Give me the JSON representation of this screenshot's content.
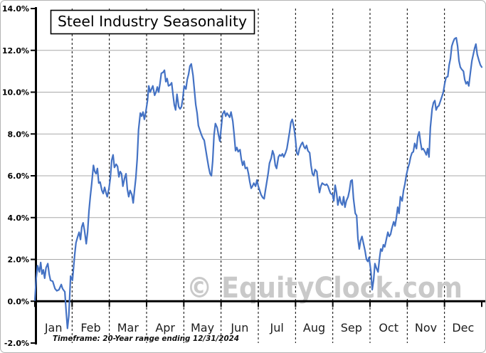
{
  "colors": {
    "line": "#4472c4",
    "grid": "#a9a9a9",
    "axis": "#000000",
    "month_divider": "#000000",
    "watermark": "#c9c9c9",
    "title_text": "#000000",
    "frame_border": "#b4b4b4"
  },
  "chart_data": {
    "type": "line",
    "title": "Steel Industry Seasonality",
    "footnote": "Timeframe: 20-Year range ending 12/31/2024",
    "watermark": "© EquityClock.com",
    "y_unit": "percent",
    "x_unit": "fraction of year (Jan 1 = 0, Dec 31 = 1)",
    "ylim": [
      -2,
      14
    ],
    "y_tick_step": 2,
    "y_ticks": [
      "14.0%",
      "12.0%",
      "10.0%",
      "8.0%",
      "6.0%",
      "4.0%",
      "2.0%",
      "0.0%",
      "-2.0%"
    ],
    "months": [
      "Jan",
      "Feb",
      "Mar",
      "Apr",
      "May",
      "Jun",
      "Jul",
      "Aug",
      "Sep",
      "Oct",
      "Nov",
      "Dec"
    ],
    "grid": "horizontal solid gray at 2% steps; vertical black dashed at month boundaries",
    "legend": "none",
    "points": [
      [
        0.0,
        0.05
      ],
      [
        0.003,
        1.1
      ],
      [
        0.006,
        1.7
      ],
      [
        0.01,
        1.4
      ],
      [
        0.013,
        1.85
      ],
      [
        0.016,
        1.3
      ],
      [
        0.019,
        1.5
      ],
      [
        0.022,
        1.1
      ],
      [
        0.025,
        1.6
      ],
      [
        0.029,
        1.8
      ],
      [
        0.032,
        1.3
      ],
      [
        0.035,
        1.0
      ],
      [
        0.04,
        0.95
      ],
      [
        0.045,
        0.6
      ],
      [
        0.049,
        0.5
      ],
      [
        0.054,
        0.55
      ],
      [
        0.059,
        0.8
      ],
      [
        0.062,
        0.6
      ],
      [
        0.067,
        0.45
      ],
      [
        0.07,
        -0.5
      ],
      [
        0.073,
        -1.3
      ],
      [
        0.076,
        -0.7
      ],
      [
        0.08,
        1.2
      ],
      [
        0.084,
        1.0
      ],
      [
        0.089,
        2.2
      ],
      [
        0.092,
        2.8
      ],
      [
        0.096,
        3.1
      ],
      [
        0.099,
        3.3
      ],
      [
        0.102,
        2.95
      ],
      [
        0.105,
        3.55
      ],
      [
        0.108,
        3.75
      ],
      [
        0.111,
        3.4
      ],
      [
        0.115,
        2.75
      ],
      [
        0.118,
        3.3
      ],
      [
        0.121,
        4.3
      ],
      [
        0.124,
        5.0
      ],
      [
        0.127,
        5.6
      ],
      [
        0.131,
        6.5
      ],
      [
        0.134,
        6.2
      ],
      [
        0.137,
        6.1
      ],
      [
        0.14,
        6.35
      ],
      [
        0.143,
        5.65
      ],
      [
        0.146,
        5.7
      ],
      [
        0.15,
        5.3
      ],
      [
        0.153,
        5.15
      ],
      [
        0.156,
        5.45
      ],
      [
        0.159,
        5.2
      ],
      [
        0.162,
        5.0
      ],
      [
        0.166,
        5.4
      ],
      [
        0.169,
        5.9
      ],
      [
        0.172,
        6.75
      ],
      [
        0.175,
        7.0
      ],
      [
        0.178,
        6.4
      ],
      [
        0.182,
        6.55
      ],
      [
        0.185,
        6.45
      ],
      [
        0.188,
        5.95
      ],
      [
        0.191,
        6.2
      ],
      [
        0.194,
        6.1
      ],
      [
        0.197,
        5.5
      ],
      [
        0.201,
        5.9
      ],
      [
        0.204,
        6.1
      ],
      [
        0.207,
        5.35
      ],
      [
        0.21,
        5.0
      ],
      [
        0.213,
        5.3
      ],
      [
        0.217,
        5.1
      ],
      [
        0.22,
        4.7
      ],
      [
        0.223,
        5.3
      ],
      [
        0.226,
        5.9
      ],
      [
        0.229,
        6.8
      ],
      [
        0.232,
        8.2
      ],
      [
        0.236,
        9.0
      ],
      [
        0.239,
        8.85
      ],
      [
        0.242,
        9.05
      ],
      [
        0.245,
        8.7
      ],
      [
        0.248,
        9.0
      ],
      [
        0.252,
        9.6
      ],
      [
        0.255,
        10.3
      ],
      [
        0.258,
        10.0
      ],
      [
        0.261,
        10.15
      ],
      [
        0.264,
        10.3
      ],
      [
        0.268,
        9.85
      ],
      [
        0.271,
        10.0
      ],
      [
        0.274,
        10.25
      ],
      [
        0.277,
        10.0
      ],
      [
        0.28,
        10.4
      ],
      [
        0.283,
        10.9
      ],
      [
        0.287,
        10.95
      ],
      [
        0.29,
        11.05
      ],
      [
        0.293,
        10.5
      ],
      [
        0.296,
        10.65
      ],
      [
        0.299,
        10.3
      ],
      [
        0.303,
        10.35
      ],
      [
        0.306,
        10.45
      ],
      [
        0.309,
        9.9
      ],
      [
        0.312,
        9.4
      ],
      [
        0.315,
        9.15
      ],
      [
        0.318,
        9.9
      ],
      [
        0.322,
        9.3
      ],
      [
        0.325,
        9.2
      ],
      [
        0.328,
        9.3
      ],
      [
        0.331,
        9.7
      ],
      [
        0.334,
        10.3
      ],
      [
        0.338,
        10.15
      ],
      [
        0.341,
        10.6
      ],
      [
        0.344,
        10.85
      ],
      [
        0.347,
        11.25
      ],
      [
        0.35,
        11.35
      ],
      [
        0.354,
        10.8
      ],
      [
        0.357,
        10.1
      ],
      [
        0.36,
        9.4
      ],
      [
        0.363,
        9.0
      ],
      [
        0.366,
        8.4
      ],
      [
        0.369,
        8.2
      ],
      [
        0.373,
        7.95
      ],
      [
        0.376,
        7.8
      ],
      [
        0.379,
        7.7
      ],
      [
        0.382,
        7.3
      ],
      [
        0.385,
        6.9
      ],
      [
        0.389,
        6.4
      ],
      [
        0.392,
        6.1
      ],
      [
        0.395,
        6.0
      ],
      [
        0.398,
        6.7
      ],
      [
        0.401,
        7.95
      ],
      [
        0.404,
        8.5
      ],
      [
        0.408,
        8.3
      ],
      [
        0.411,
        7.95
      ],
      [
        0.414,
        7.65
      ],
      [
        0.417,
        8.3
      ],
      [
        0.42,
        8.95
      ],
      [
        0.424,
        9.1
      ],
      [
        0.427,
        8.85
      ],
      [
        0.43,
        9.0
      ],
      [
        0.433,
        8.9
      ],
      [
        0.436,
        8.8
      ],
      [
        0.439,
        9.05
      ],
      [
        0.443,
        8.6
      ],
      [
        0.446,
        7.95
      ],
      [
        0.449,
        7.2
      ],
      [
        0.452,
        7.35
      ],
      [
        0.455,
        7.15
      ],
      [
        0.459,
        7.25
      ],
      [
        0.462,
        6.8
      ],
      [
        0.465,
        6.5
      ],
      [
        0.468,
        6.7
      ],
      [
        0.471,
        6.35
      ],
      [
        0.475,
        6.4
      ],
      [
        0.478,
        6.1
      ],
      [
        0.481,
        5.7
      ],
      [
        0.484,
        5.4
      ],
      [
        0.487,
        5.5
      ],
      [
        0.49,
        5.65
      ],
      [
        0.494,
        5.5
      ],
      [
        0.497,
        5.8
      ],
      [
        0.5,
        5.5
      ],
      [
        0.503,
        5.3
      ],
      [
        0.506,
        5.1
      ],
      [
        0.51,
        4.95
      ],
      [
        0.513,
        4.9
      ],
      [
        0.516,
        5.3
      ],
      [
        0.519,
        5.7
      ],
      [
        0.522,
        6.1
      ],
      [
        0.525,
        6.6
      ],
      [
        0.529,
        6.85
      ],
      [
        0.532,
        7.2
      ],
      [
        0.535,
        7.0
      ],
      [
        0.538,
        6.5
      ],
      [
        0.541,
        6.35
      ],
      [
        0.545,
        6.9
      ],
      [
        0.548,
        7.0
      ],
      [
        0.551,
        6.95
      ],
      [
        0.554,
        7.05
      ],
      [
        0.557,
        6.9
      ],
      [
        0.561,
        7.1
      ],
      [
        0.564,
        7.3
      ],
      [
        0.567,
        7.7
      ],
      [
        0.57,
        8.1
      ],
      [
        0.573,
        8.55
      ],
      [
        0.576,
        8.7
      ],
      [
        0.58,
        8.3
      ],
      [
        0.583,
        7.8
      ],
      [
        0.586,
        7.1
      ],
      [
        0.589,
        7.0
      ],
      [
        0.592,
        7.3
      ],
      [
        0.596,
        7.5
      ],
      [
        0.599,
        7.6
      ],
      [
        0.602,
        7.4
      ],
      [
        0.605,
        7.3
      ],
      [
        0.608,
        7.45
      ],
      [
        0.611,
        7.2
      ],
      [
        0.615,
        7.1
      ],
      [
        0.618,
        6.5
      ],
      [
        0.621,
        6.1
      ],
      [
        0.624,
        6.0
      ],
      [
        0.627,
        6.3
      ],
      [
        0.631,
        6.2
      ],
      [
        0.634,
        5.6
      ],
      [
        0.637,
        5.2
      ],
      [
        0.64,
        5.5
      ],
      [
        0.643,
        5.65
      ],
      [
        0.646,
        5.6
      ],
      [
        0.65,
        5.55
      ],
      [
        0.653,
        5.6
      ],
      [
        0.656,
        5.5
      ],
      [
        0.659,
        5.3
      ],
      [
        0.662,
        5.15
      ],
      [
        0.666,
        5.1
      ],
      [
        0.669,
        4.8
      ],
      [
        0.672,
        5.55
      ],
      [
        0.675,
        5.2
      ],
      [
        0.678,
        4.6
      ],
      [
        0.682,
        5.0
      ],
      [
        0.685,
        4.7
      ],
      [
        0.688,
        4.6
      ],
      [
        0.691,
        5.0
      ],
      [
        0.694,
        4.5
      ],
      [
        0.697,
        4.8
      ],
      [
        0.701,
        5.0
      ],
      [
        0.704,
        5.3
      ],
      [
        0.707,
        5.75
      ],
      [
        0.71,
        5.8
      ],
      [
        0.713,
        4.9
      ],
      [
        0.717,
        4.2
      ],
      [
        0.72,
        4.1
      ],
      [
        0.723,
        3.0
      ],
      [
        0.726,
        2.5
      ],
      [
        0.729,
        2.9
      ],
      [
        0.732,
        3.1
      ],
      [
        0.736,
        2.7
      ],
      [
        0.739,
        2.4
      ],
      [
        0.742,
        2.0
      ],
      [
        0.745,
        1.9
      ],
      [
        0.748,
        2.1
      ],
      [
        0.752,
        1.4
      ],
      [
        0.755,
        0.55
      ],
      [
        0.758,
        1.0
      ],
      [
        0.761,
        1.8
      ],
      [
        0.764,
        1.6
      ],
      [
        0.768,
        1.4
      ],
      [
        0.771,
        2.0
      ],
      [
        0.774,
        2.5
      ],
      [
        0.777,
        2.4
      ],
      [
        0.78,
        2.7
      ],
      [
        0.783,
        2.6
      ],
      [
        0.787,
        3.0
      ],
      [
        0.79,
        3.3
      ],
      [
        0.793,
        3.1
      ],
      [
        0.796,
        3.2
      ],
      [
        0.799,
        3.5
      ],
      [
        0.803,
        3.8
      ],
      [
        0.806,
        3.6
      ],
      [
        0.809,
        4.0
      ],
      [
        0.812,
        4.5
      ],
      [
        0.815,
        4.2
      ],
      [
        0.818,
        5.0
      ],
      [
        0.822,
        4.8
      ],
      [
        0.825,
        5.3
      ],
      [
        0.828,
        5.6
      ],
      [
        0.831,
        6.0
      ],
      [
        0.834,
        6.3
      ],
      [
        0.838,
        6.6
      ],
      [
        0.841,
        6.9
      ],
      [
        0.844,
        7.1
      ],
      [
        0.847,
        7.15
      ],
      [
        0.85,
        7.55
      ],
      [
        0.854,
        7.3
      ],
      [
        0.857,
        7.9
      ],
      [
        0.86,
        8.1
      ],
      [
        0.863,
        7.6
      ],
      [
        0.866,
        7.25
      ],
      [
        0.869,
        7.3
      ],
      [
        0.873,
        7.15
      ],
      [
        0.876,
        7.0
      ],
      [
        0.879,
        7.3
      ],
      [
        0.882,
        6.9
      ],
      [
        0.885,
        8.3
      ],
      [
        0.889,
        9.2
      ],
      [
        0.892,
        9.5
      ],
      [
        0.895,
        9.6
      ],
      [
        0.898,
        9.15
      ],
      [
        0.901,
        9.3
      ],
      [
        0.904,
        9.35
      ],
      [
        0.908,
        9.6
      ],
      [
        0.911,
        9.8
      ],
      [
        0.914,
        10.0
      ],
      [
        0.917,
        10.4
      ],
      [
        0.92,
        10.7
      ],
      [
        0.924,
        10.75
      ],
      [
        0.927,
        11.3
      ],
      [
        0.93,
        11.6
      ],
      [
        0.933,
        12.2
      ],
      [
        0.936,
        12.4
      ],
      [
        0.939,
        12.55
      ],
      [
        0.943,
        12.6
      ],
      [
        0.946,
        12.2
      ],
      [
        0.949,
        11.5
      ],
      [
        0.952,
        11.2
      ],
      [
        0.955,
        11.1
      ],
      [
        0.959,
        11.0
      ],
      [
        0.962,
        10.6
      ],
      [
        0.965,
        10.4
      ],
      [
        0.968,
        10.5
      ],
      [
        0.971,
        10.3
      ],
      [
        0.975,
        11.0
      ],
      [
        0.978,
        11.5
      ],
      [
        0.981,
        11.8
      ],
      [
        0.984,
        12.1
      ],
      [
        0.987,
        12.3
      ],
      [
        0.99,
        11.8
      ],
      [
        0.994,
        11.5
      ],
      [
        0.997,
        11.3
      ],
      [
        1.0,
        11.2
      ]
    ]
  }
}
